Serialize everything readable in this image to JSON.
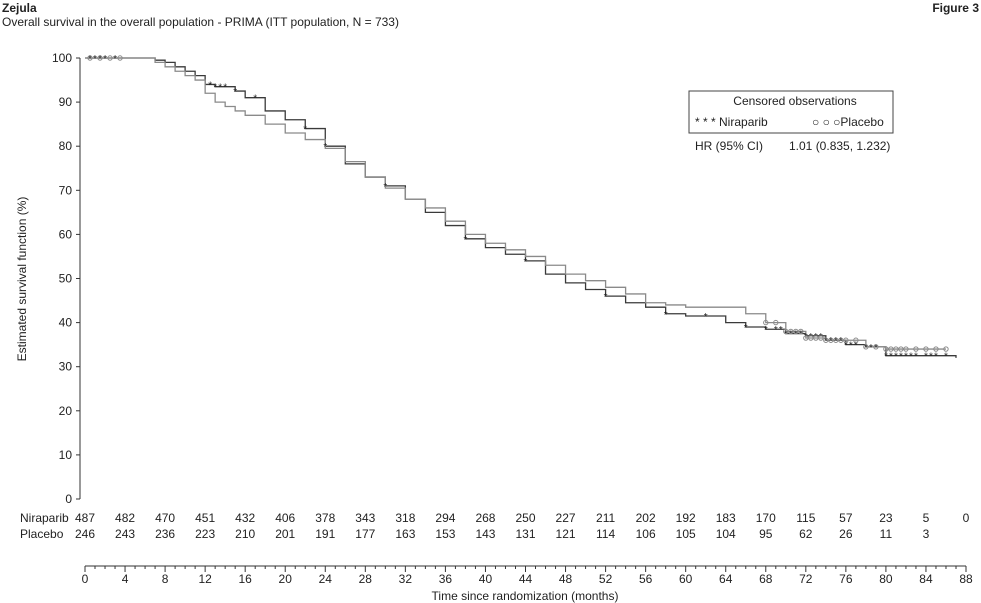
{
  "header": {
    "brand": "Zejula",
    "subtitle": "Overall survival in the overall population - PRIMA (ITT population, N = 733)",
    "figure_label": "Figure 3"
  },
  "legend": {
    "title": "Censored observations",
    "niraparib": "* * * Niraparib",
    "placebo": "○ ○ ○Placebo",
    "hr_label": "HR (95% CI)",
    "hr_value": "1.01 (0.835, 1.232)"
  },
  "chart_data": {
    "type": "line",
    "title": "Overall survival in the overall population - PRIMA (ITT population, N = 733)",
    "xlabel": "Time since randomization (months)",
    "ylabel": "Estimated survival function (%)",
    "xlim": [
      0,
      88
    ],
    "ylim": [
      0,
      100
    ],
    "x_ticks": [
      0,
      4,
      8,
      12,
      16,
      20,
      24,
      28,
      32,
      36,
      40,
      44,
      48,
      52,
      56,
      60,
      64,
      68,
      72,
      76,
      80,
      84,
      88
    ],
    "y_ticks": [
      0,
      10,
      20,
      30,
      40,
      50,
      60,
      70,
      80,
      90,
      100
    ],
    "grid": false,
    "legend_position": "top-right",
    "series": [
      {
        "name": "Niraparib",
        "color": "#3a3a3a",
        "marker": "asterisk",
        "x": [
          0,
          2,
          5,
          7,
          8,
          9,
          10,
          11,
          12,
          13,
          14,
          15,
          16,
          18,
          20,
          22,
          24,
          26,
          28,
          30,
          32,
          34,
          36,
          38,
          40,
          42,
          44,
          46,
          48,
          50,
          52,
          54,
          56,
          58,
          60,
          62,
          64,
          66,
          68,
          70,
          72,
          74,
          76,
          78,
          80,
          82,
          84,
          86,
          87
        ],
        "y": [
          100,
          100,
          100,
          99.5,
          99,
          98,
          97,
          96,
          94,
          93.5,
          93.5,
          92.5,
          91,
          88,
          86,
          84,
          80,
          76,
          73,
          71,
          68,
          65,
          62,
          59,
          57,
          55.5,
          54,
          51,
          49,
          47.5,
          46,
          44.5,
          43.5,
          42,
          41.5,
          41.5,
          40,
          39,
          38.5,
          37.5,
          37,
          36,
          35,
          34.5,
          32.5,
          32.5,
          32.5,
          32.5,
          32
        ]
      },
      {
        "name": "Placebo",
        "color": "#8a8a8a",
        "marker": "circle",
        "x": [
          0,
          2,
          5,
          7,
          8,
          9,
          10,
          11,
          12,
          13,
          14,
          15,
          16,
          18,
          20,
          22,
          24,
          26,
          28,
          30,
          32,
          34,
          36,
          38,
          40,
          42,
          44,
          46,
          48,
          50,
          52,
          54,
          56,
          58,
          60,
          62,
          64,
          66,
          68,
          70,
          72,
          74,
          76,
          78,
          80,
          82,
          84,
          86
        ],
        "y": [
          100,
          100,
          100,
          99,
          98,
          97,
          96,
          95,
          92,
          90,
          89,
          88,
          87,
          85,
          83,
          81.5,
          79.5,
          76.5,
          73,
          70.5,
          68,
          66,
          63,
          60,
          58,
          56.5,
          55,
          53,
          51,
          49.5,
          48,
          46.5,
          44.5,
          44,
          43.5,
          43.5,
          43.5,
          42,
          40,
          38,
          36.5,
          36,
          36,
          34.5,
          34,
          34,
          34,
          34
        ]
      }
    ],
    "risk_table": {
      "x": [
        0,
        4,
        8,
        12,
        16,
        20,
        24,
        28,
        32,
        36,
        40,
        44,
        48,
        52,
        56,
        60,
        64,
        68,
        72,
        76,
        80,
        84,
        88
      ],
      "rows": [
        {
          "label": "Niraparib",
          "values": [
            "487",
            "482",
            "470",
            "451",
            "432",
            "406",
            "378",
            "343",
            "318",
            "294",
            "268",
            "250",
            "227",
            "211",
            "202",
            "192",
            "183",
            "170",
            "115",
            "57",
            "23",
            "5",
            "0"
          ]
        },
        {
          "label": "Placebo",
          "values": [
            "246",
            "243",
            "236",
            "223",
            "210",
            "201",
            "191",
            "177",
            "163",
            "153",
            "143",
            "131",
            "121",
            "114",
            "106",
            "105",
            "104",
            "95",
            "62",
            "26",
            "11",
            "3",
            ""
          ]
        }
      ]
    },
    "censor_marks": {
      "Niraparib": [
        0.5,
        1,
        1.5,
        2,
        3,
        12.5,
        13,
        13.5,
        14,
        15,
        17,
        22,
        24,
        30,
        38,
        44,
        52,
        58,
        62,
        66,
        68,
        69,
        69.5,
        70,
        70.5,
        71,
        71.5,
        72,
        72.5,
        73,
        73.5,
        74,
        74.5,
        75,
        75.5,
        76,
        76.5,
        77,
        78,
        78.5,
        79,
        80,
        80.5,
        81,
        81.5,
        82,
        82.5,
        83,
        84,
        84.5,
        85,
        86
      ],
      "Placebo": [
        0.5,
        1.5,
        2.5,
        3.5,
        68,
        69,
        70,
        70.5,
        71,
        71.5,
        72,
        72.5,
        73,
        73.5,
        74,
        74.5,
        75,
        75.5,
        76,
        77,
        78,
        79,
        80,
        80.5,
        81,
        81.5,
        82,
        83,
        84,
        85,
        86
      ]
    }
  }
}
